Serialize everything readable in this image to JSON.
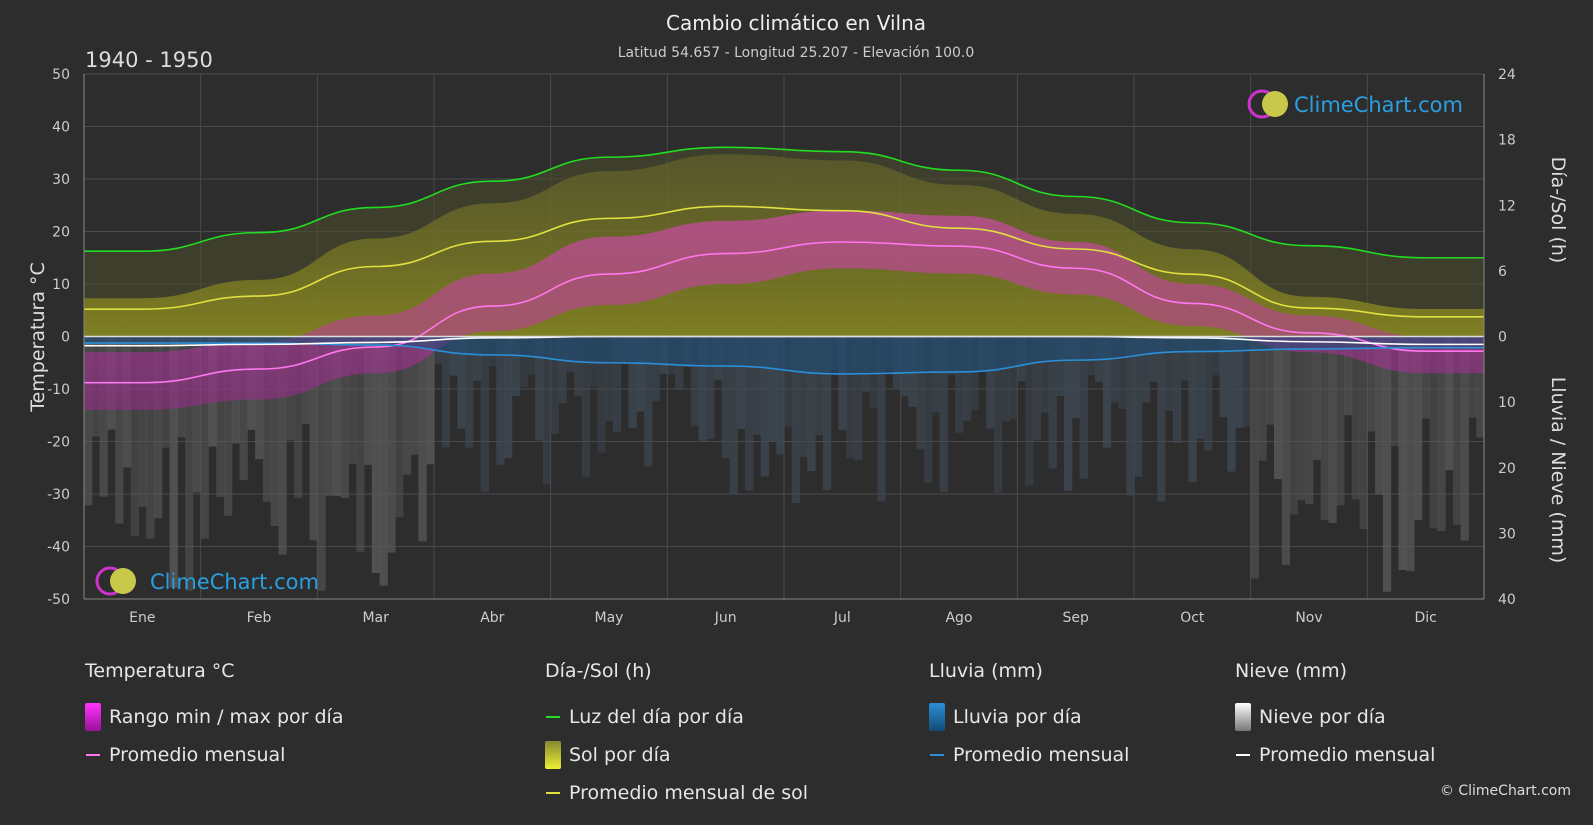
{
  "chart_data": {
    "type": "area",
    "title": "Cambio climático en Vilna",
    "subtitle": "Latitud 54.657 - Longitud 25.207 - Elevación 100.0",
    "period": "1940 - 1950",
    "ylabel_left": "Temperatura °C",
    "ylabel_right_top": "Día-/Sol (h)",
    "ylabel_right_bottom": "Lluvia / Nieve (mm)",
    "ylim_left": [
      -50,
      50
    ],
    "yticks_left": [
      "50",
      "40",
      "30",
      "20",
      "10",
      "0",
      "-10",
      "-20",
      "-30",
      "-40",
      "-50"
    ],
    "yticks_right_top": [
      "24",
      "18",
      "12",
      "6",
      "0"
    ],
    "yticks_right_bottom": [
      "10",
      "20",
      "30",
      "40"
    ],
    "categories": [
      "Ene",
      "Feb",
      "Mar",
      "Abr",
      "May",
      "Jun",
      "Jul",
      "Ago",
      "Sep",
      "Oct",
      "Nov",
      "Dic"
    ],
    "grid": true,
    "series": [
      {
        "name": "Luz del día por día",
        "unit": "h",
        "color": "#22dd22",
        "values": [
          7.8,
          9.5,
          11.8,
          14.2,
          16.4,
          17.3,
          16.9,
          15.2,
          12.8,
          10.4,
          8.3,
          7.2
        ]
      },
      {
        "name": "Promedio mensual de sol",
        "unit": "h",
        "color": "#e0e040",
        "values": [
          2.5,
          3.7,
          6.4,
          8.7,
          10.8,
          11.9,
          11.5,
          9.9,
          8.0,
          5.7,
          2.6,
          1.8
        ]
      },
      {
        "name": "Promedio mensual",
        "group": "temperature",
        "unit": "°C",
        "color": "#ff77ee",
        "values": [
          -8.8,
          -6.2,
          -2.0,
          5.8,
          11.9,
          15.8,
          18.0,
          17.2,
          13.0,
          6.3,
          0.7,
          -2.8
        ]
      },
      {
        "name": "Promedio mensual",
        "group": "rain",
        "unit": "mm",
        "color": "#2a8fd8",
        "values": [
          1.0,
          1.0,
          1.3,
          2.8,
          4.0,
          4.5,
          5.7,
          5.4,
          3.6,
          2.3,
          1.9,
          1.7
        ]
      },
      {
        "name": "Promedio mensual",
        "group": "snow",
        "unit": "mm",
        "color": "#ffffff",
        "values": [
          1.4,
          1.2,
          0.9,
          0.2,
          0.0,
          0.0,
          0.0,
          0.0,
          0.0,
          0.2,
          0.8,
          1.2
        ]
      }
    ],
    "temp_daily_range": {
      "min": [
        -14,
        -12,
        -7,
        1,
        6,
        10,
        13,
        12,
        8,
        2,
        -3,
        -7
      ],
      "max": [
        -3,
        -1,
        4,
        12,
        19,
        22,
        24,
        23,
        18,
        10,
        4,
        0
      ]
    }
  },
  "watermark": {
    "text": "ClimeChart.com"
  },
  "legend": {
    "groups": [
      {
        "title": "Temperatura °C",
        "items": [
          {
            "label": "Rango min / max por día",
            "kind": "box",
            "color": "#dd22dd"
          },
          {
            "label": "Promedio mensual",
            "kind": "line",
            "color": "#ff77ee"
          }
        ]
      },
      {
        "title": "Día-/Sol (h)",
        "items": [
          {
            "label": "Luz del día por día",
            "kind": "line",
            "color": "#22dd22"
          },
          {
            "label": "Sol por día",
            "kind": "box",
            "color": "#cccc33"
          },
          {
            "label": "Promedio mensual de sol",
            "kind": "line",
            "color": "#e0e040"
          }
        ]
      },
      {
        "title": "Lluvia (mm)",
        "items": [
          {
            "label": "Lluvia por día",
            "kind": "box",
            "color": "#2a8fd8"
          },
          {
            "label": "Promedio mensual",
            "kind": "line",
            "color": "#2a8fd8"
          }
        ]
      },
      {
        "title": "Nieve (mm)",
        "items": [
          {
            "label": "Nieve por día",
            "kind": "box",
            "color": "#dddddd"
          },
          {
            "label": "Promedio mensual",
            "kind": "line",
            "color": "#ffffff"
          }
        ]
      }
    ]
  },
  "copyright": "© ClimeChart.com"
}
